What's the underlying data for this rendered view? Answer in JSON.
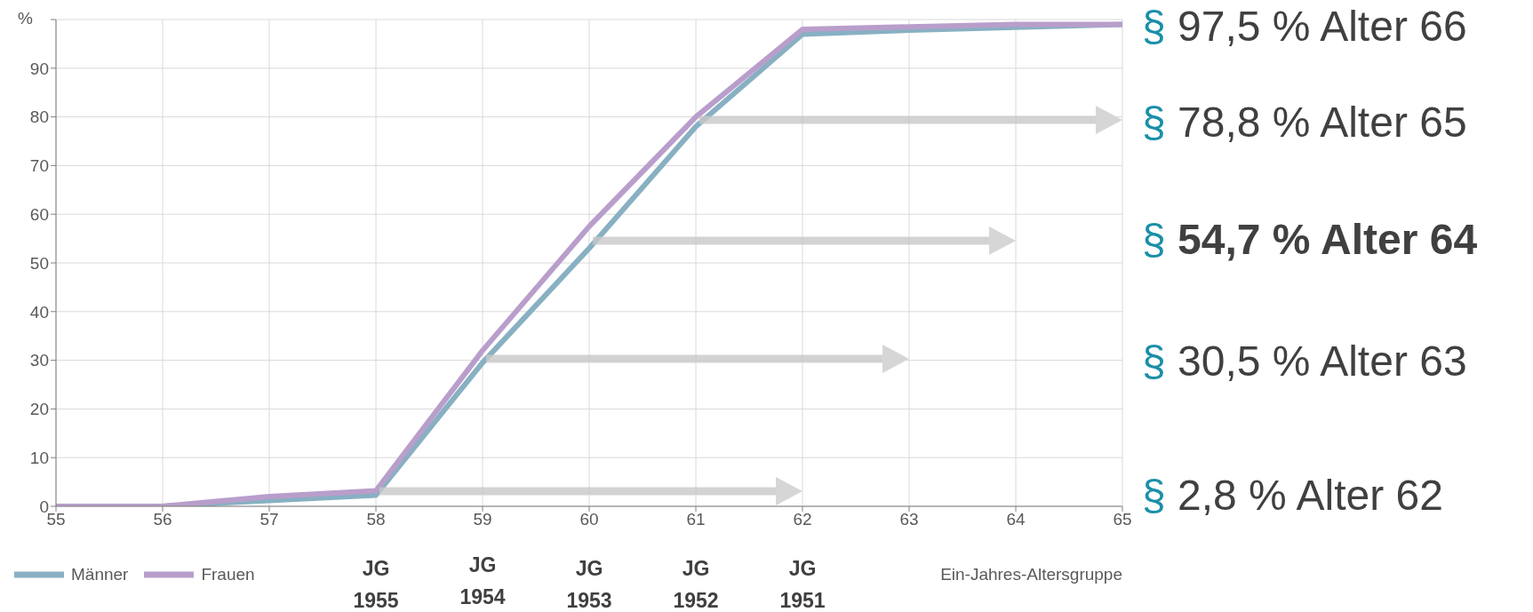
{
  "chart_data": {
    "type": "line",
    "ylabel": "%",
    "xlabel": "Ein-Jahres-Altersgruppe",
    "x": [
      55,
      56,
      57,
      58,
      59,
      60,
      61,
      62,
      63,
      64,
      65
    ],
    "series": [
      {
        "name": "Männer",
        "color": "#88b0c2",
        "values": [
          0,
          0,
          1.2,
          2.3,
          29.5,
          53,
          78,
          97,
          97.8,
          98.4,
          99
        ]
      },
      {
        "name": "Frauen",
        "color": "#b99ecb",
        "values": [
          0,
          0,
          2,
          3.2,
          32,
          57.5,
          80,
          98,
          98.5,
          99,
          99
        ]
      }
    ],
    "xlim": [
      55,
      65
    ],
    "xticks": [
      55,
      56,
      57,
      58,
      59,
      60,
      61,
      62,
      63,
      64,
      65
    ],
    "ylim": [
      0,
      100
    ],
    "yticks": [
      0,
      10,
      20,
      30,
      40,
      50,
      60,
      70,
      80,
      90,
      {
        "value": 100,
        "label": null
      }
    ],
    "grid": true,
    "legend": "bottom left",
    "marker": "none",
    "line_style": "solid",
    "annotations": [
      "§ 97,5 % Alter 66",
      "§ 78,8 % Alter 65",
      "§ 54,7 % Alter 64",
      "§ 30,5 % Alter 63",
      "§ 2,8 % Alter 62",
      "JG\n1955",
      "JG\n1954",
      "JG\n1953",
      "JG\n1952",
      "JG\n1951"
    ]
  }
}
